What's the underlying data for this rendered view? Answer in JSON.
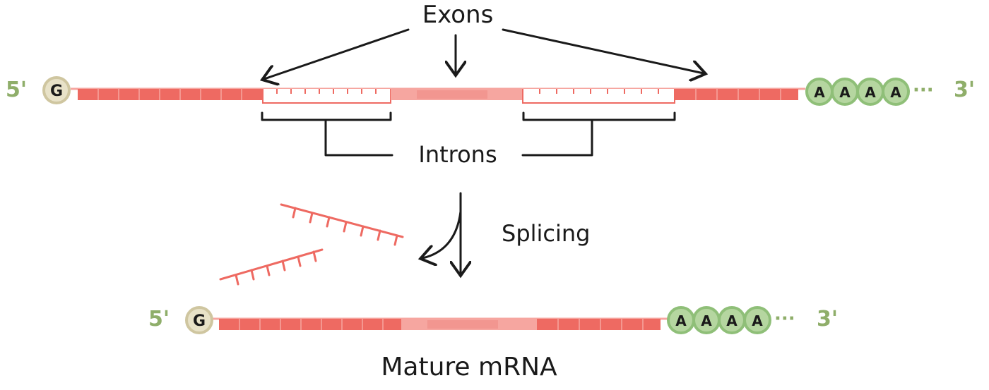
{
  "labels": {
    "exons": "Exons",
    "introns": "Introns",
    "splicing": "Splicing",
    "mature": "Mature mRNA"
  },
  "pre_mrna": {
    "five_prime": "5'",
    "cap": "G",
    "poly_a": [
      "A",
      "A",
      "A",
      "A"
    ],
    "tail_dots": "···",
    "three_prime": "3'"
  },
  "mature_mrna": {
    "five_prime": "5'",
    "cap": "G",
    "poly_a": [
      "A",
      "A",
      "A",
      "A"
    ],
    "tail_dots": "···",
    "three_prime": "3'"
  },
  "colors": {
    "exon": "#ee6a62",
    "exon_light": "#f6a6a0",
    "exon_mid": "#f08c85",
    "intron_outline": "#ee6a62",
    "cap_fill": "#e8e2c8",
    "cap_stroke": "#cfc6a0",
    "polya_fill": "#b5d6a0",
    "polya_stroke": "#8fbf78",
    "end_label": "#8fae6a",
    "ink": "#1a1a1a"
  }
}
